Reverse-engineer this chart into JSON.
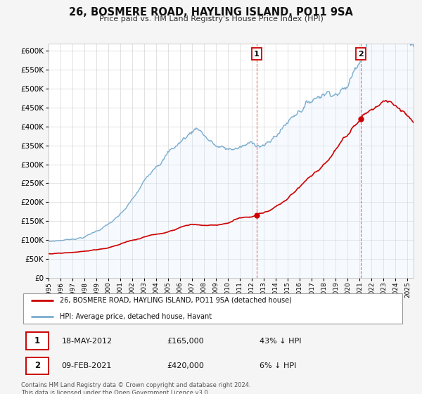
{
  "title": "26, BOSMERE ROAD, HAYLING ISLAND, PO11 9SA",
  "subtitle": "Price paid vs. HM Land Registry's House Price Index (HPI)",
  "legend_line1": "26, BOSMERE ROAD, HAYLING ISLAND, PO11 9SA (detached house)",
  "legend_line2": "HPI: Average price, detached house, Havant",
  "annotation1_date": "18-MAY-2012",
  "annotation1_price": "£165,000",
  "annotation1_hpi": "43% ↓ HPI",
  "annotation1_year": 2012.38,
  "annotation1_value": 165000,
  "annotation2_date": "09-FEB-2021",
  "annotation2_price": "£420,000",
  "annotation2_hpi": "6% ↓ HPI",
  "annotation2_year": 2021.11,
  "annotation2_value": 420000,
  "red_color": "#cc0000",
  "blue_color": "#7aacce",
  "blue_fill": "#ddeeff",
  "background_color": "#f5f5f5",
  "plot_bg_color": "#ffffff",
  "footer_text": "Contains HM Land Registry data © Crown copyright and database right 2024.\nThis data is licensed under the Open Government Licence v3.0.",
  "ylim_max": 620000,
  "xlim_start": 1995.0,
  "xlim_end": 2025.5
}
